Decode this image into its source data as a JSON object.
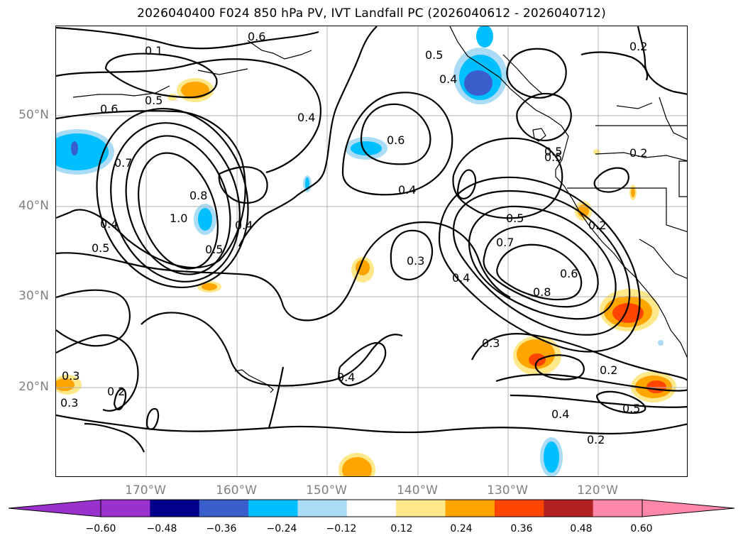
{
  "title": "2026040400 F024 850 hPa PV, IVT Landfall PC (2026040612 - 2026040712)",
  "lat_labels": [
    "50°N",
    "40°N",
    "30°N",
    "20°N"
  ],
  "lon_labels": [
    "170°W",
    "160°W",
    "150°W",
    "140°W",
    "130°W",
    "120°W"
  ],
  "contour_labels": [
    "0.1",
    "0.6",
    "0.5",
    "0.6",
    "0.5",
    "0.4",
    "0.5",
    "0.6",
    "0.2",
    "0.7",
    "0.8",
    "1.0",
    "0.4",
    "0.5",
    "0.5",
    "0.4",
    "0.4",
    "0.5",
    "0.7",
    "0.3",
    "0.6",
    "0.8",
    "0.4",
    "0.2",
    "0.3",
    "0.4",
    "0.2",
    "0.3",
    "0.2",
    "0.4",
    "0.5",
    "0.2",
    "0.3",
    "0.2",
    "0.5",
    "0.4"
  ],
  "colorbar": {
    "ticks": [
      "−0.60",
      "−0.48",
      "−0.36",
      "−0.24",
      "−0.12",
      "0.12",
      "0.24",
      "0.36",
      "0.48",
      "0.60"
    ],
    "colors": [
      "#9932cc",
      "#00008b",
      "#3a5fcd",
      "#00bfff",
      "#aadcf5",
      "#ffffff",
      "#ffe88a",
      "#ffa500",
      "#ff4500",
      "#b22222",
      "#ff88aa",
      "#ff88aa"
    ],
    "extend_low_color": "#9932cc",
    "extend_high_color": "#ff88aa"
  }
}
